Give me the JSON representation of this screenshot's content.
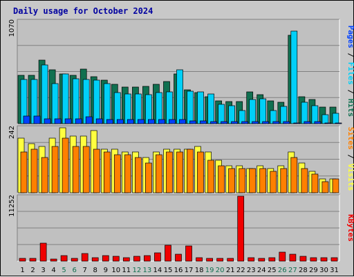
{
  "chart_data": {
    "type": "bar",
    "title": "Daily usage for October 2024",
    "colors": {
      "title": "#0000a0",
      "hits": "#107050",
      "files": "#00d0f8",
      "pages": "#0040ff",
      "visits": "#ffff40",
      "sites": "#ff8000",
      "kbytes": "#f00000",
      "weekend_label": "#107050",
      "weekday_label": "#000000",
      "grid": "#808080",
      "plot_bg": "#c0c0c0"
    },
    "categories": [
      "1",
      "2",
      "3",
      "4",
      "5",
      "6",
      "7",
      "8",
      "9",
      "10",
      "11",
      "12",
      "13",
      "14",
      "15",
      "16",
      "17",
      "18",
      "19",
      "20",
      "21",
      "22",
      "23",
      "24",
      "25",
      "26",
      "27",
      "28",
      "29",
      "30",
      "31"
    ],
    "weekend_days": [
      "5",
      "6",
      "12",
      "13",
      "19",
      "20",
      "26",
      "27"
    ],
    "panels": [
      {
        "id": "hits-files-pages",
        "max_label": "1070",
        "ymax": 1070,
        "labels": [
          {
            "text": "Hits",
            "color": "#107050"
          },
          {
            "text": " / ",
            "color": "#000000"
          },
          {
            "text": "Files",
            "color": "#00d0f8"
          },
          {
            "text": " / ",
            "color": "#000000"
          },
          {
            "text": "Pages",
            "color": "#0040ff"
          }
        ],
        "series": [
          {
            "name": "Hits",
            "color": "#107050",
            "values": [
              500,
              500,
              660,
              560,
              520,
              500,
              570,
              490,
              450,
              410,
              380,
              380,
              390,
              410,
              440,
              520,
              350,
              320,
              280,
              240,
              230,
              230,
              330,
              300,
              240,
              220,
              920,
              280,
              250,
              170,
              170
            ]
          },
          {
            "name": "Files",
            "color": "#00d0f8",
            "values": [
              460,
              460,
              610,
              420,
              520,
              470,
              460,
              450,
              420,
              320,
              310,
              310,
              300,
              320,
              330,
              560,
              340,
              330,
              310,
              200,
              190,
              140,
              250,
              260,
              140,
              180,
              960,
              220,
              190,
              90,
              110
            ]
          },
          {
            "name": "Pages",
            "color": "#0040ff",
            "values": [
              80,
              80,
              50,
              50,
              50,
              50,
              70,
              50,
              40,
              40,
              40,
              40,
              40,
              40,
              40,
              40,
              30,
              30,
              20,
              20,
              20,
              20,
              20,
              20,
              20,
              20,
              10,
              20,
              20,
              10,
              10
            ]
          }
        ]
      },
      {
        "id": "visits-sites",
        "max_label": "242",
        "ymax": 242,
        "labels": [
          {
            "text": "Visits",
            "color": "#ffff40"
          },
          {
            "text": " / ",
            "color": "#000000"
          },
          {
            "text": "Sites",
            "color": "#ff8000"
          }
        ],
        "series": [
          {
            "name": "Visits",
            "color": "#ffff40",
            "values": [
              200,
              180,
              170,
              200,
              240,
              210,
              210,
              230,
              160,
              160,
              150,
              150,
              130,
              150,
              160,
              160,
              160,
              170,
              150,
              120,
              100,
              100,
              90,
              100,
              90,
              100,
              150,
              110,
              80,
              50,
              50
            ]
          },
          {
            "name": "Sites",
            "color": "#ff8000",
            "values": [
              150,
              160,
              130,
              170,
              200,
              170,
              170,
              160,
              150,
              140,
              140,
              130,
              110,
              140,
              150,
              150,
              160,
              150,
              120,
              100,
              90,
              90,
              90,
              90,
              80,
              90,
              130,
              90,
              70,
              40,
              50
            ]
          }
        ]
      },
      {
        "id": "kbytes",
        "max_label": "11252",
        "ymax": 11252,
        "labels": [
          {
            "text": "KBytes",
            "color": "#f00000"
          }
        ],
        "series": [
          {
            "name": "KBytes",
            "color": "#f00000",
            "values": [
              420,
              500,
              3100,
              320,
              1000,
              480,
              1300,
              540,
              900,
              860,
              600,
              830,
              900,
              1400,
              2700,
              1200,
              2600,
              570,
              520,
              490,
              450,
              11252,
              570,
              430,
              570,
              1550,
              1250,
              800,
              570,
              550,
              570
            ]
          }
        ]
      }
    ]
  }
}
